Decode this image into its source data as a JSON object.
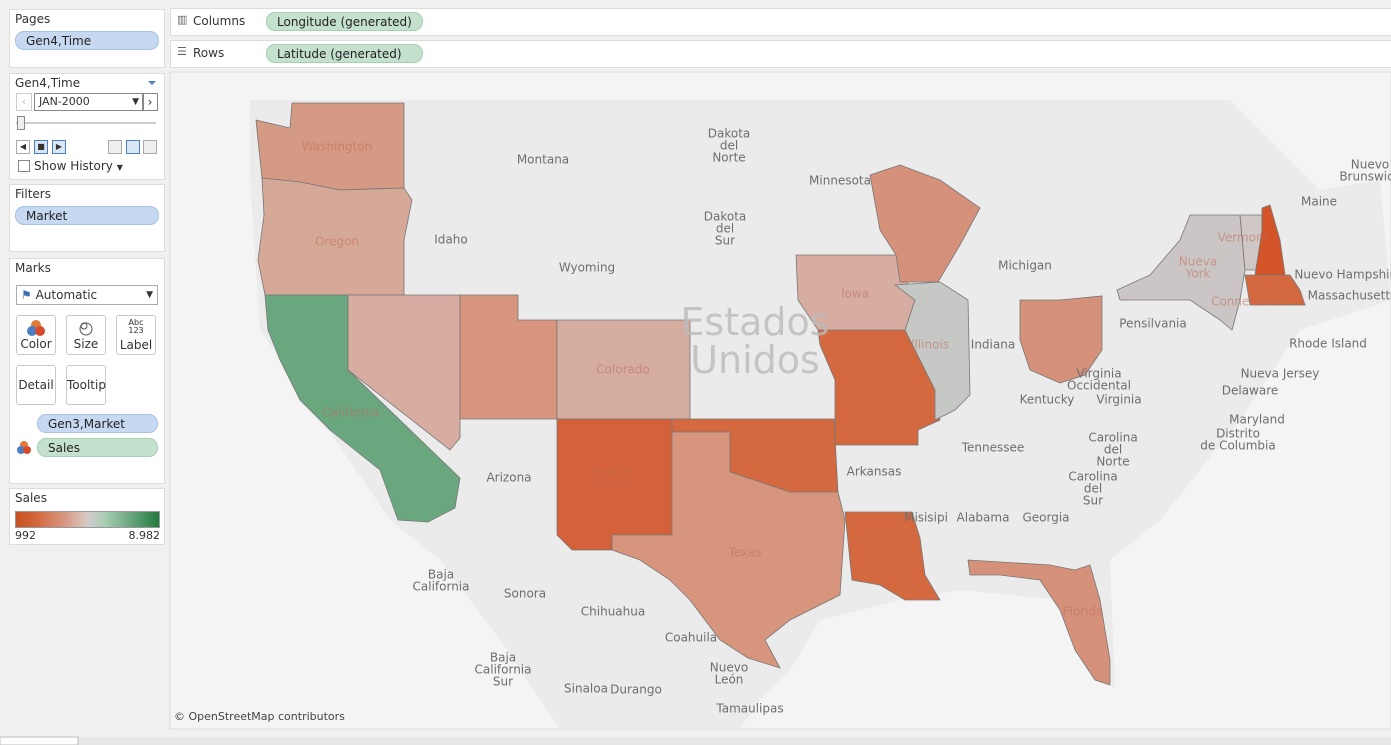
{
  "pages": {
    "title": "Pages",
    "pill": "Gen4,Time"
  },
  "columns": {
    "label": "Columns",
    "pill": "Longitude (generated)"
  },
  "rows": {
    "label": "Rows",
    "pill": "Latitude (generated)"
  },
  "page_control": {
    "title": "Gen4,Time",
    "value": "JAN-2000",
    "show_history": "Show History"
  },
  "filters": {
    "title": "Filters",
    "pill": "Market"
  },
  "marks": {
    "title": "Marks",
    "type": "Automatic",
    "buttons": [
      "Color",
      "Size",
      "Label",
      "Detail",
      "Tooltip"
    ],
    "label_icon": [
      "Abc",
      "123"
    ],
    "fields": [
      "Gen3,Market",
      "Sales"
    ]
  },
  "legend": {
    "title": "Sales",
    "min": "992",
    "max": "8.982"
  },
  "map": {
    "country": [
      "Estados",
      "Unidos"
    ],
    "attribution": "© OpenStreetMap contributors",
    "labels": [
      {
        "lines": [
          "Montana"
        ]
      },
      {
        "lines": [
          "Dakota",
          "del",
          "Norte"
        ]
      },
      {
        "lines": [
          "Minnesota"
        ]
      },
      {
        "lines": [
          "Dakota",
          "del",
          "Sur"
        ]
      },
      {
        "lines": [
          "Wyoming"
        ]
      },
      {
        "lines": [
          "Idaho"
        ]
      },
      {
        "lines": [
          "Michigan"
        ]
      },
      {
        "lines": [
          "Maine"
        ]
      },
      {
        "lines": [
          "Nuevo Hampshire"
        ]
      },
      {
        "lines": [
          "Massachusetts"
        ]
      },
      {
        "lines": [
          "Rhode Island"
        ]
      },
      {
        "lines": [
          "Pensilvania"
        ]
      },
      {
        "lines": [
          "Indiana"
        ]
      },
      {
        "lines": [
          "Virginia",
          "Occidental"
        ]
      },
      {
        "lines": [
          "Virginia"
        ]
      },
      {
        "lines": [
          "Kentucky"
        ]
      },
      {
        "lines": [
          "Nueva Jersey"
        ]
      },
      {
        "lines": [
          "Delaware"
        ]
      },
      {
        "lines": [
          "Maryland"
        ]
      },
      {
        "lines": [
          "Distrito",
          "de Columbia"
        ]
      },
      {
        "lines": [
          "Tennessee"
        ]
      },
      {
        "lines": [
          "Carolina",
          "del",
          "Norte"
        ]
      },
      {
        "lines": [
          "Carolina",
          "del",
          "Sur"
        ]
      },
      {
        "lines": [
          "Arkansas"
        ]
      },
      {
        "lines": [
          "Misisipi"
        ]
      },
      {
        "lines": [
          "Alabama"
        ]
      },
      {
        "lines": [
          "Georgia"
        ]
      },
      {
        "lines": [
          "Arizona"
        ]
      },
      {
        "lines": [
          "Baja",
          "California"
        ]
      },
      {
        "lines": [
          "Sonora"
        ]
      },
      {
        "lines": [
          "Chihuahua"
        ]
      },
      {
        "lines": [
          "Coahuila"
        ]
      },
      {
        "lines": [
          "Baja",
          "California",
          "Sur"
        ]
      },
      {
        "lines": [
          "Nuevo",
          "León"
        ]
      },
      {
        "lines": [
          "Sinaloa"
        ]
      },
      {
        "lines": [
          "Durango"
        ]
      },
      {
        "lines": [
          "Tamaulipas"
        ]
      },
      {
        "lines": [
          "Nuevo",
          "Brunswick"
        ]
      },
      {
        "lines": [
          "Washington"
        ]
      },
      {
        "lines": [
          "Oregon"
        ]
      },
      {
        "lines": [
          "California"
        ]
      },
      {
        "lines": [
          "Colorado"
        ]
      },
      {
        "lines": [
          "Nuevo",
          "México"
        ]
      },
      {
        "lines": [
          "Iowa"
        ]
      },
      {
        "lines": [
          "Illinois"
        ]
      },
      {
        "lines": [
          "Nueva",
          "York"
        ]
      },
      {
        "lines": [
          "Vermont"
        ]
      },
      {
        "lines": [
          "Connecticut"
        ]
      },
      {
        "lines": [
          "Texas"
        ]
      },
      {
        "lines": [
          "Florida"
        ]
      }
    ]
  }
}
